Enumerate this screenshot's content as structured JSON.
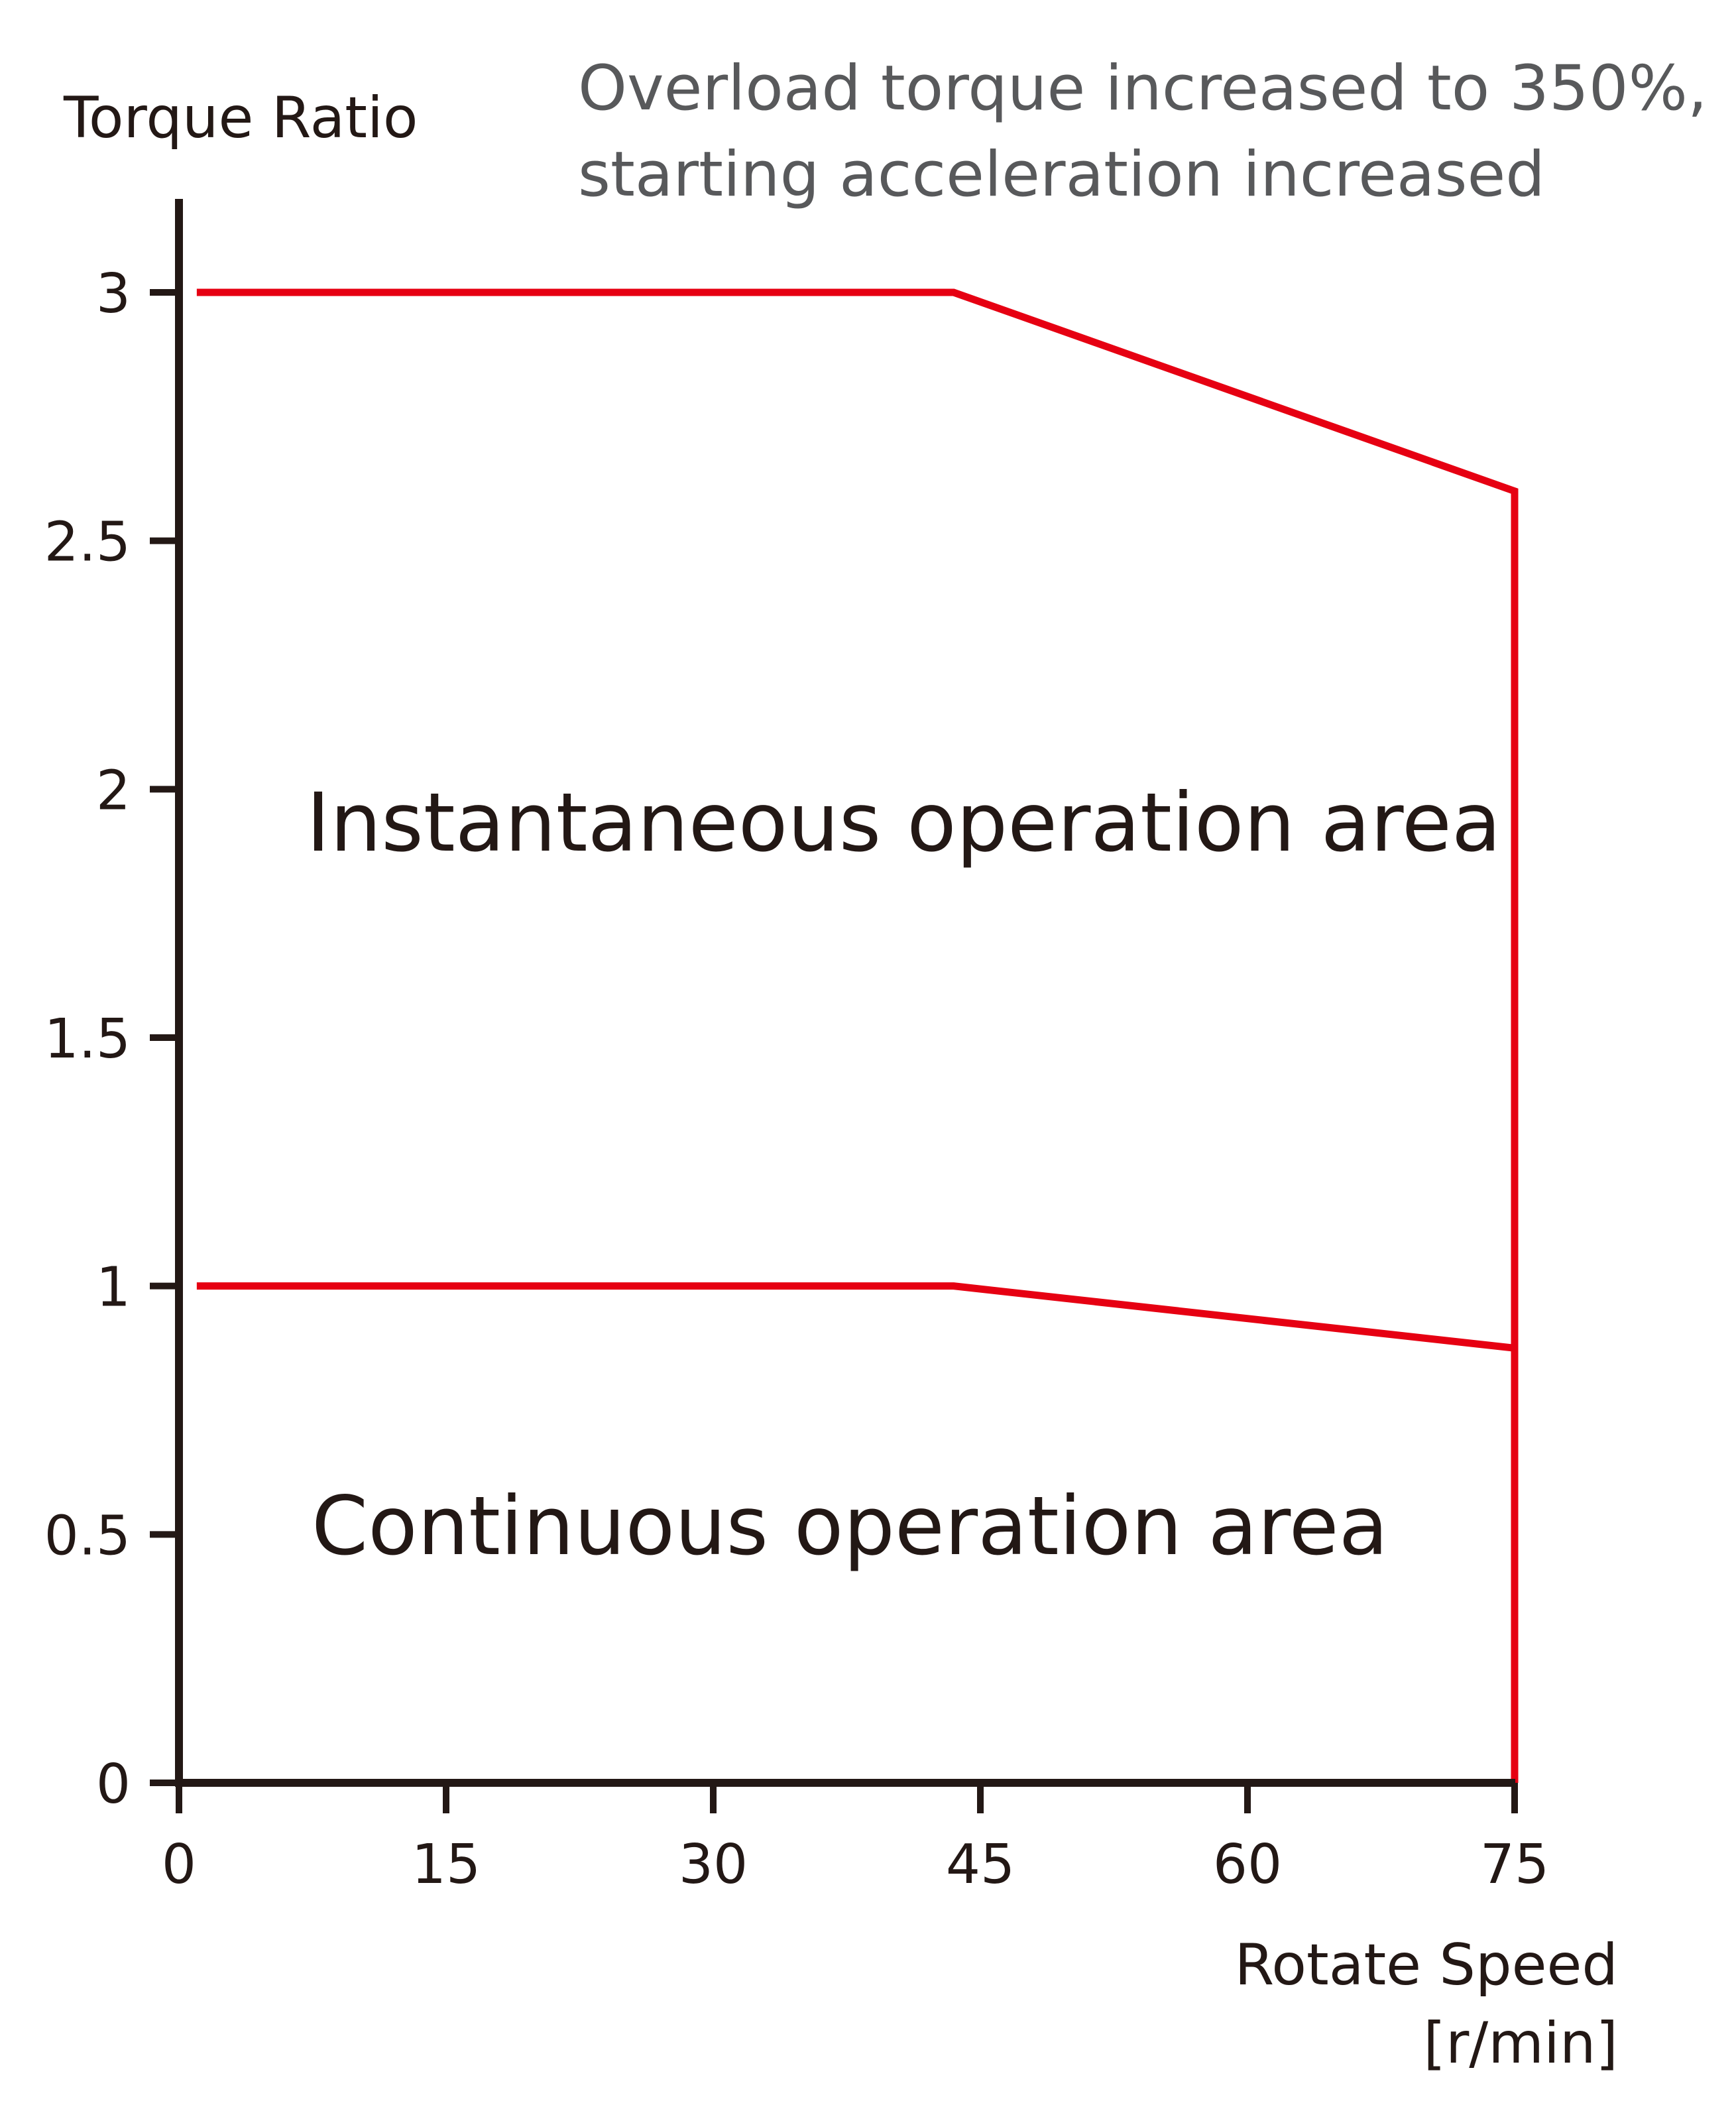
{
  "chart_data": {
    "type": "line",
    "title": "",
    "note": [
      "Overload torque increased to 350%,",
      "starting acceleration increased"
    ],
    "ylabel": "Torque Ratio",
    "xlabel": [
      "Rotate Speed",
      "[r/min]"
    ],
    "xlim": [
      0,
      75
    ],
    "ylim": [
      0,
      3.2
    ],
    "xticks": [
      0,
      15,
      30,
      45,
      60,
      75
    ],
    "xtick_labels": [
      "0",
      "15",
      "30",
      "45",
      "60",
      "75"
    ],
    "yticks": [
      0,
      0.5,
      1,
      1.5,
      2,
      2.5,
      3
    ],
    "ytick_labels": [
      "0",
      "0.5",
      "1",
      "1.5",
      "2",
      "2.5",
      "3"
    ],
    "grid": false,
    "series": [
      {
        "color": "#e60012",
        "points": [
          {
            "x": 1,
            "y": 3.0
          },
          {
            "x": 43.5,
            "y": 3.0
          },
          {
            "x": 75,
            "y": 2.6
          },
          {
            "x": 75,
            "y": 0.0
          }
        ]
      },
      {
        "color": "#e60012",
        "points": [
          {
            "x": 1,
            "y": 1.0
          },
          {
            "x": 43.5,
            "y": 1.0
          },
          {
            "x": 75,
            "y": 0.875
          }
        ]
      }
    ],
    "annotations": [
      {
        "text": "Instantaneous operation area"
      },
      {
        "text": "Continuous operation area"
      }
    ]
  }
}
